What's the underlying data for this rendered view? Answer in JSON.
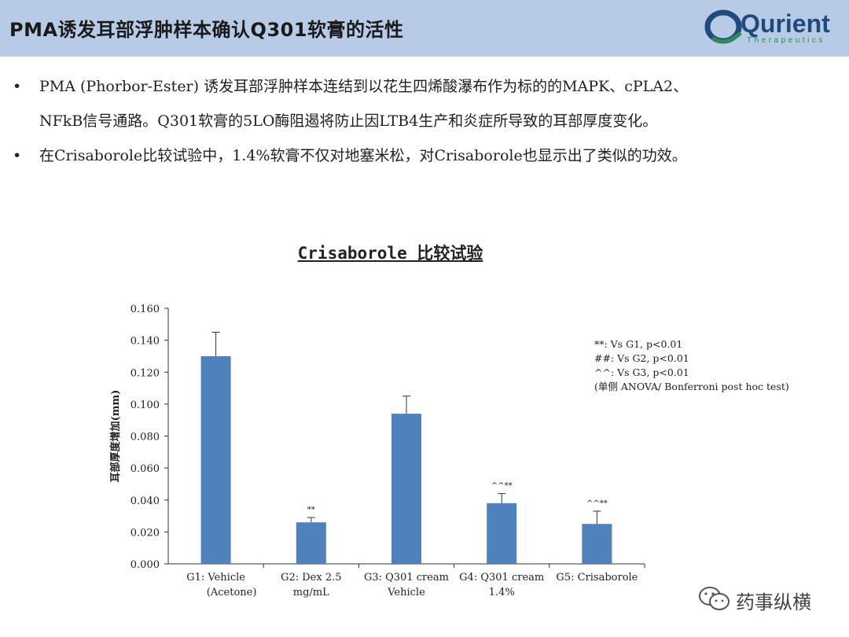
{
  "header": {
    "title": "PMA诱发耳部浮肿样本确认Q301软膏的活性"
  },
  "logo": {
    "name": "Qurient",
    "tagline": "Therapeutics"
  },
  "bullets": [
    {
      "line1": "PMA (Phorbor-Ester) 诱发耳部浮肿样本连结到以花生四烯酸瀑布作为标的的MAPK、cPLA2、",
      "line2": "NFkB信号通路。Q301软膏的5LO酶阻遏将防止因LTB4生产和炎症所导致的耳部厚度变化。"
    },
    {
      "line1": "在Crisaborole比较试验中，1.4%软膏不仅对地塞米松，对Crisaborole也显示出了类似的功效。"
    }
  ],
  "watermark": {
    "text": "药事纵横"
  },
  "chart_data": {
    "type": "bar",
    "title": "Crisaborole 比较试验",
    "ylabel": "耳部厚度增加(mm)",
    "ylim": [
      0,
      0.16
    ],
    "yticks": [
      "0.000",
      "0.020",
      "0.040",
      "0.060",
      "0.080",
      "0.100",
      "0.120",
      "0.140",
      "0.160"
    ],
    "categories": [
      [
        "G1: Vehicle",
        "(Acetone)"
      ],
      [
        "G2: Dex 2.5",
        "mg/mL"
      ],
      [
        "G3: Q301 cream",
        "Vehicle"
      ],
      [
        "G4: Q301 cream",
        "1.4%"
      ],
      [
        "G5: Crisaborole"
      ]
    ],
    "values": [
      0.13,
      0.026,
      0.094,
      0.038,
      0.025
    ],
    "errors": [
      0.015,
      0.003,
      0.011,
      0.006,
      0.008
    ],
    "annotations": [
      "",
      "**",
      "",
      "^^**",
      "^^**"
    ],
    "bar_color": "#4f81bd",
    "legend_notes": [
      "**: Vs G1, p<0.01",
      "##: Vs G2, p<0.01",
      "^^: Vs G3, p<0.01",
      "(单侧 ANOVA/ Bonferroni post hoc test)"
    ]
  }
}
